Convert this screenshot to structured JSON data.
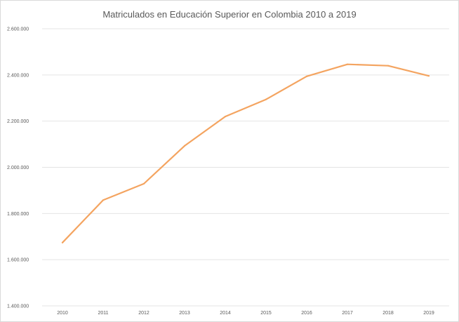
{
  "chart_data": {
    "type": "line",
    "title": "Matriculados en Educación Superior en Colombia 2010 a 2019",
    "xlabel": "",
    "ylabel": "",
    "categories": [
      "2010",
      "2011",
      "2012",
      "2013",
      "2014",
      "2015",
      "2016",
      "2017",
      "2018",
      "2019"
    ],
    "series": [
      {
        "color": "#F4A460",
        "values": [
          1674000,
          1858000,
          1929000,
          2093000,
          2220000,
          2294000,
          2394000,
          2446000,
          2440000,
          2396000
        ]
      }
    ],
    "ylim": [
      1400000,
      2600000
    ],
    "yticks": [
      {
        "value": 1400000,
        "label": "1.400.000"
      },
      {
        "value": 1600000,
        "label": "1.600.000"
      },
      {
        "value": 1800000,
        "label": "1.800.000"
      },
      {
        "value": 2000000,
        "label": "2.000.000"
      },
      {
        "value": 2200000,
        "label": "2.200.000"
      },
      {
        "value": 2400000,
        "label": "2.400.000"
      },
      {
        "value": 2600000,
        "label": "2.600.000"
      }
    ],
    "grid": true,
    "legend": "none"
  }
}
